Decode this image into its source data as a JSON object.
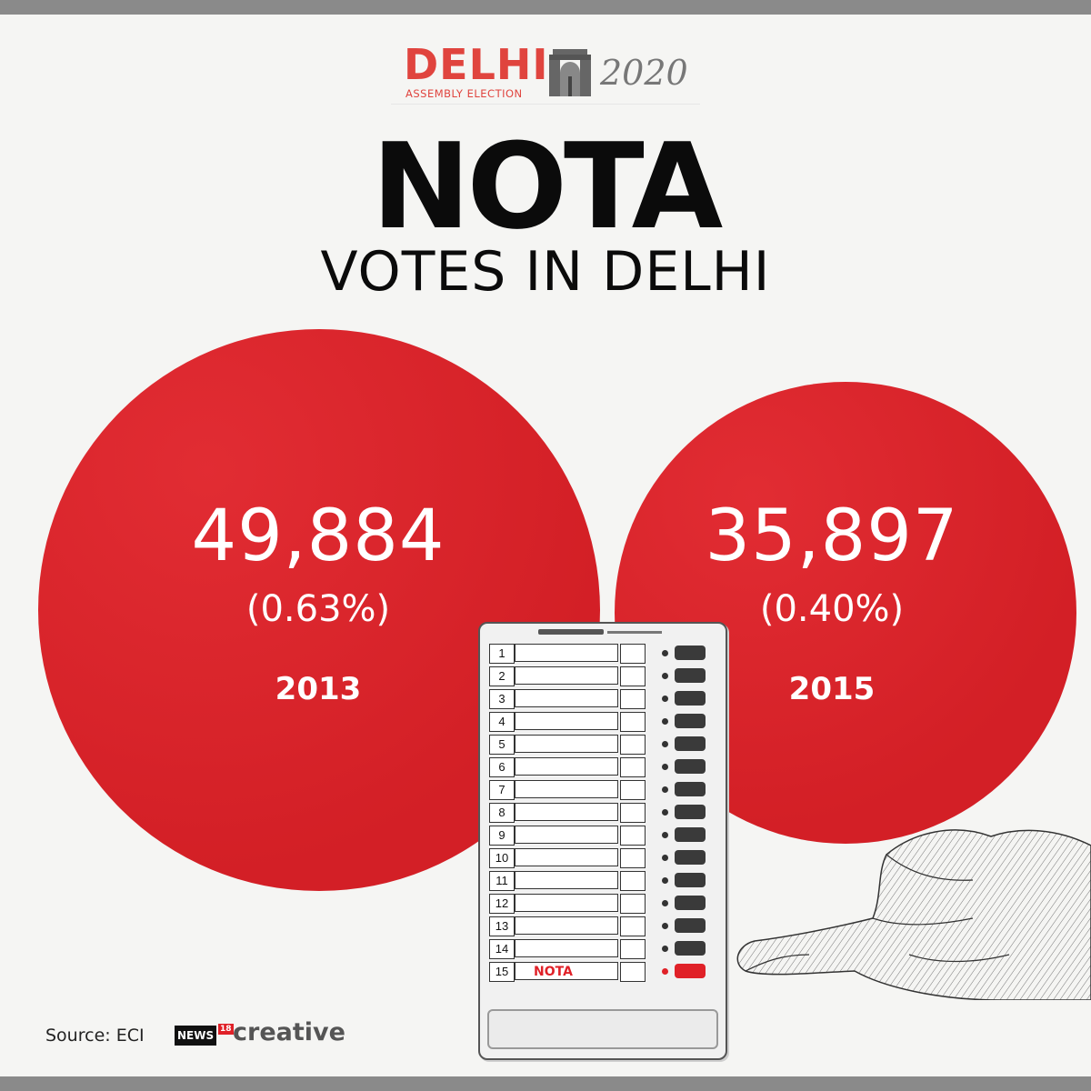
{
  "logo": {
    "word": "DELHI",
    "subtitle": "ASSEMBLY ELECTION",
    "year": "2020",
    "icon": "india-gate-icon"
  },
  "headline": {
    "title": "NOTA",
    "subtitle": "VOTES IN DELHI"
  },
  "figures": [
    {
      "value": "49,884",
      "percent": "(0.63%)",
      "year": "2013"
    },
    {
      "value": "35,897",
      "percent": "(0.40%)",
      "year": "2015"
    }
  ],
  "evm": {
    "rows": [
      "1",
      "2",
      "3",
      "4",
      "5",
      "6",
      "7",
      "8",
      "9",
      "10",
      "11",
      "12",
      "13",
      "14",
      "15"
    ],
    "nota_label": "NOTA",
    "nota_row": "15"
  },
  "footer": {
    "source": "Source: ECI",
    "brand_news": "NEWS",
    "brand_number": "18",
    "brand_creative": "creative"
  },
  "colors": {
    "accent_red": "#e02128",
    "logo_red": "#e0443e",
    "background": "#f5f5f3",
    "text": "#0b0b0b"
  }
}
